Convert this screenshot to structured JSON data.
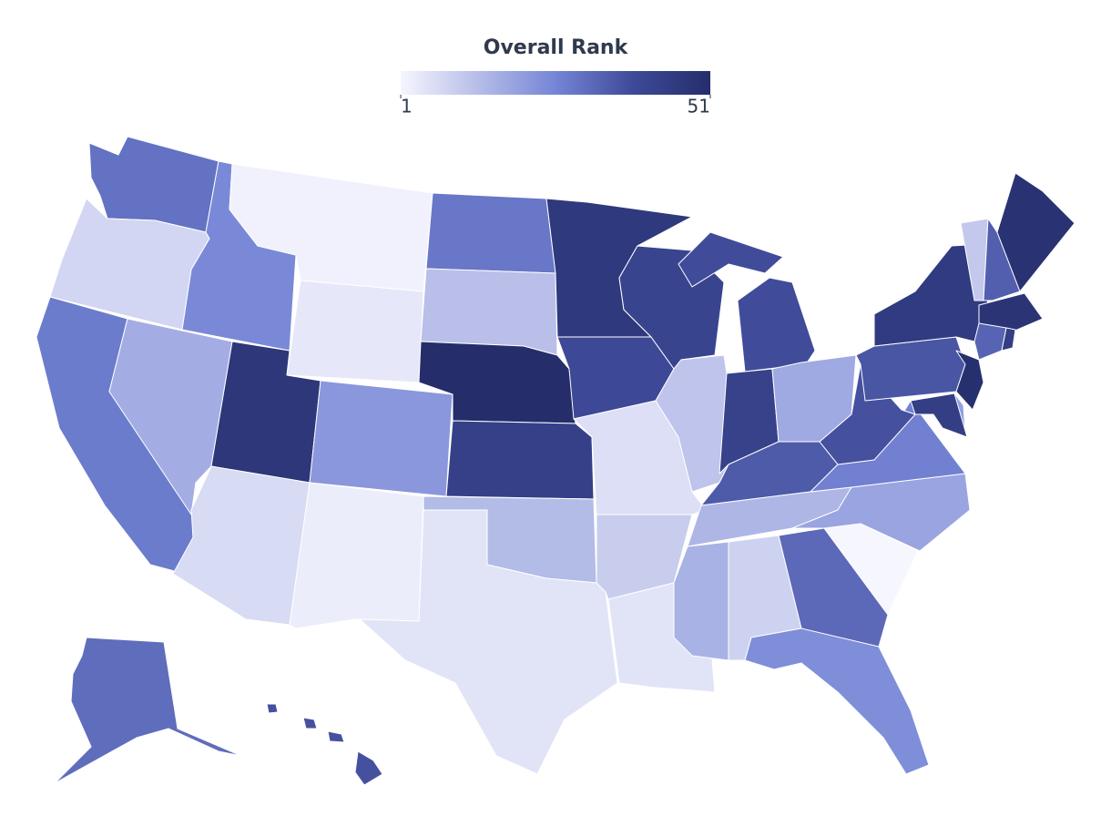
{
  "chart_data": {
    "type": "choropleth",
    "title": "Overall Rank",
    "zlim": [
      1,
      51
    ],
    "zticks": [
      1,
      51
    ],
    "colorscale": [
      "#f5f6fe",
      "#b6bde8",
      "#7585d6",
      "#3e4a98",
      "#252e6b"
    ],
    "values": [
      30,
      8,
      28,
      17,
      25,
      2,
      4,
      47,
      7,
      22,
      3,
      29,
      13,
      51,
      43,
      14,
      5,
      46,
      39,
      6,
      10,
      5,
      41,
      12,
      38,
      42,
      18,
      35,
      15,
      16,
      9,
      32,
      24,
      1,
      19,
      27,
      37,
      36,
      45,
      11,
      34,
      49,
      48,
      33,
      44,
      50,
      20,
      44,
      31,
      37
    ]
  }
}
